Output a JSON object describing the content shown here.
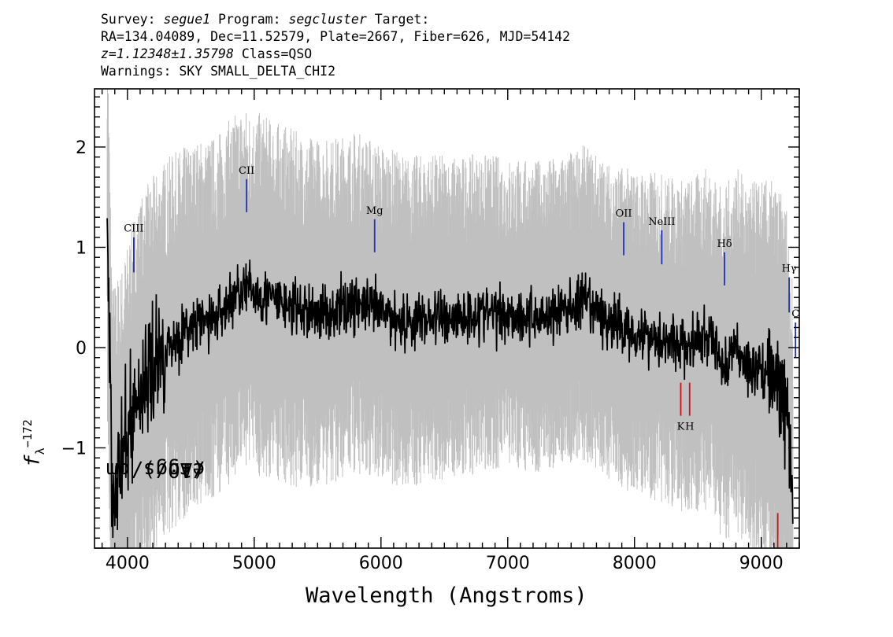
{
  "header": {
    "survey_prefix": "Survey: ",
    "survey": "segue1",
    "program_prefix": " Program: ",
    "program": "segcluster",
    "target_suffix": " Target:",
    "coords_line": "RA=134.04089, Dec=11.52579, Plate=2667, Fiber=626, MJD=54142",
    "redshift": "z=1.12348±1.35798",
    "class_text": " Class=QSO",
    "warnings_line": "Warnings: SKY SMALL_DELTA_CHI2"
  },
  "chart_data": {
    "type": "line",
    "xlabel": "Wavelength (Angstroms)",
    "ylabel_prefix": "f",
    "ylabel_sub": "λ",
    "ylabel_mid": " (10",
    "ylabel_exp": "−17",
    "ylabel_rest": " erg/s/cm",
    "ylabel_exp2": "2",
    "ylabel_end": "/Ang)",
    "xlim": [
      3740,
      9300
    ],
    "ylim": [
      -2.0,
      2.58
    ],
    "x_ticks": [
      4000,
      5000,
      6000,
      7000,
      8000,
      9000
    ],
    "x_tick_labels": [
      "4000",
      "5000",
      "6000",
      "7000",
      "8000",
      "9000"
    ],
    "y_ticks": [
      -1,
      0,
      1,
      2
    ],
    "y_tick_labels": [
      "−1",
      "0",
      "1",
      "2"
    ],
    "series": [
      {
        "role": "flux",
        "color": "#000000",
        "x": [
          3840,
          3880,
          3950,
          4050,
          4150,
          4300,
          4500,
          4700,
          4900,
          5000,
          5200,
          5400,
          5600,
          5800,
          6000,
          6200,
          6400,
          6600,
          6800,
          7000,
          7200,
          7400,
          7600,
          7800,
          8000,
          8200,
          8400,
          8600,
          8700,
          8800,
          8900,
          9000,
          9100,
          9200,
          9250
        ],
        "y": [
          1.4,
          -1.4,
          -1.2,
          -0.6,
          -0.3,
          0.0,
          0.2,
          0.3,
          0.6,
          0.55,
          0.45,
          0.35,
          0.35,
          0.45,
          0.35,
          0.25,
          0.3,
          0.3,
          0.35,
          0.35,
          0.3,
          0.35,
          0.45,
          0.25,
          0.15,
          0.1,
          0.0,
          0.1,
          -0.2,
          0.0,
          -0.2,
          -0.2,
          -0.3,
          -0.6,
          -1.5
        ]
      },
      {
        "role": "uncertainty",
        "color": "#c0c0c0",
        "x": [
          3840,
          4000,
          4300,
          4700,
          5000,
          5500,
          6000,
          6500,
          7000,
          7500,
          8000,
          8500,
          9000,
          9250
        ],
        "y": [
          1.6,
          1.5,
          1.45,
          1.4,
          1.4,
          1.35,
          1.3,
          1.25,
          1.2,
          1.2,
          1.25,
          1.3,
          1.45,
          1.6
        ]
      }
    ],
    "emission_lines": [
      {
        "label": "CIII",
        "wavelength": 4050,
        "y_top": 1.1,
        "y_bottom": 0.75,
        "color": "#2030c0"
      },
      {
        "label": "CII",
        "wavelength": 4940,
        "y_top": 1.68,
        "y_bottom": 1.35,
        "color": "#2030c0"
      },
      {
        "label": "Mg",
        "wavelength": 5950,
        "y_top": 1.28,
        "y_bottom": 0.95,
        "color": "#2030c0"
      },
      {
        "label": "OII",
        "wavelength": 7915,
        "y_top": 1.25,
        "y_bottom": 0.92,
        "color": "#2030c0"
      },
      {
        "label": "NeIII",
        "wavelength": 8215,
        "y_top": 1.17,
        "y_bottom": 0.83,
        "color": "#2030c0"
      },
      {
        "label": "Hδ",
        "wavelength": 8710,
        "y_top": 0.95,
        "y_bottom": 0.62,
        "color": "#2030c0"
      },
      {
        "label": "Hγ",
        "wavelength": 9220,
        "y_top": 0.7,
        "y_bottom": 0.35,
        "color": "#2030c0"
      },
      {
        "label": "C",
        "wavelength": 9270,
        "y_top": 0.25,
        "y_bottom": -0.1,
        "color": "#2030c0"
      }
    ],
    "absorption_lines": [
      {
        "label": "K",
        "wavelength": 8365,
        "y_top": -0.35,
        "y_bottom": -0.68,
        "color": "#d01010"
      },
      {
        "label": "H",
        "wavelength": 8435,
        "y_top": -0.35,
        "y_bottom": -0.68,
        "color": "#d01010"
      },
      {
        "label": "",
        "wavelength": 9130,
        "y_top": -1.65,
        "y_bottom": -2.0,
        "color": "#d01010"
      }
    ]
  }
}
